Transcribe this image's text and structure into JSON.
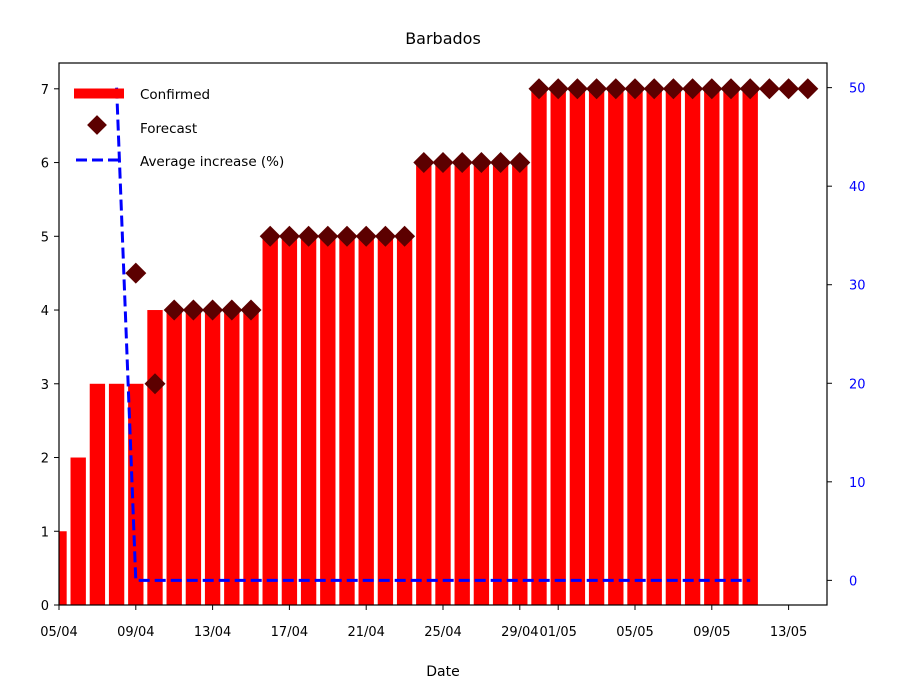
{
  "chart_data": {
    "type": "bar",
    "title": "Barbados",
    "xlabel": "Date",
    "ylabel": "",
    "ylabel_right": "",
    "ylim": [
      0,
      7.35
    ],
    "ylim_right": [
      -2.5,
      52.5
    ],
    "yticks": [
      0,
      1,
      2,
      3,
      4,
      5,
      6,
      7
    ],
    "yticks_right": [
      0,
      10,
      20,
      30,
      40,
      50
    ],
    "xlim": [
      "2020-04-05",
      "2020-05-15"
    ],
    "xticks": [
      "05/04",
      "09/04",
      "13/04",
      "17/04",
      "21/04",
      "25/04",
      "29/04",
      "01/05",
      "05/05",
      "09/05",
      "13/05"
    ],
    "colors": {
      "confirmed": "#ff0000",
      "forecast": "#5c0000",
      "average": "#0000ff",
      "right_axis": "#0000ff"
    },
    "legend_position": "upper-left",
    "legend": [
      "Confirmed",
      "Forecast",
      "Average increase (%)"
    ],
    "series": [
      {
        "name": "Confirmed",
        "type": "bar",
        "axis": "left",
        "dates": [
          "2020-04-05",
          "2020-04-06",
          "2020-04-07",
          "2020-04-08",
          "2020-04-09",
          "2020-04-10",
          "2020-04-11",
          "2020-04-12",
          "2020-04-13",
          "2020-04-14",
          "2020-04-15",
          "2020-04-16",
          "2020-04-17",
          "2020-04-18",
          "2020-04-19",
          "2020-04-20",
          "2020-04-21",
          "2020-04-22",
          "2020-04-23",
          "2020-04-24",
          "2020-04-25",
          "2020-04-26",
          "2020-04-27",
          "2020-04-28",
          "2020-04-29",
          "2020-04-30",
          "2020-05-01",
          "2020-05-02",
          "2020-05-03",
          "2020-05-04",
          "2020-05-05",
          "2020-05-06",
          "2020-05-07",
          "2020-05-08",
          "2020-05-09",
          "2020-05-10",
          "2020-05-11"
        ],
        "values": [
          1,
          2,
          3,
          3,
          3,
          4,
          4,
          4,
          4,
          4,
          4,
          5,
          5,
          5,
          5,
          5,
          5,
          5,
          5,
          6,
          6,
          6,
          6,
          6,
          6,
          7,
          7,
          7,
          7,
          7,
          7,
          7,
          7,
          7,
          7,
          7,
          7
        ]
      },
      {
        "name": "Forecast",
        "type": "scatter",
        "axis": "left",
        "dates": [
          "2020-04-09",
          "2020-04-10",
          "2020-04-11",
          "2020-04-12",
          "2020-04-13",
          "2020-04-14",
          "2020-04-15",
          "2020-04-16",
          "2020-04-17",
          "2020-04-18",
          "2020-04-19",
          "2020-04-20",
          "2020-04-21",
          "2020-04-22",
          "2020-04-23",
          "2020-04-24",
          "2020-04-25",
          "2020-04-26",
          "2020-04-27",
          "2020-04-28",
          "2020-04-29",
          "2020-04-30",
          "2020-05-01",
          "2020-05-02",
          "2020-05-03",
          "2020-05-04",
          "2020-05-05",
          "2020-05-06",
          "2020-05-07",
          "2020-05-08",
          "2020-05-09",
          "2020-05-10",
          "2020-05-11",
          "2020-05-12",
          "2020-05-13",
          "2020-05-14"
        ],
        "values": [
          4.5,
          3,
          4,
          4,
          4,
          4,
          4,
          5,
          5,
          5,
          5,
          5,
          5,
          5,
          5,
          6,
          6,
          6,
          6,
          6,
          6,
          7,
          7,
          7,
          7,
          7,
          7,
          7,
          7,
          7,
          7,
          7,
          7,
          7,
          7,
          7
        ]
      },
      {
        "name": "Average increase (%)",
        "type": "line",
        "style": "dashed",
        "axis": "right",
        "dates": [
          "2020-04-08",
          "2020-04-09",
          "2020-04-10",
          "2020-05-11"
        ],
        "values": [
          50,
          0,
          0,
          0
        ]
      }
    ]
  }
}
